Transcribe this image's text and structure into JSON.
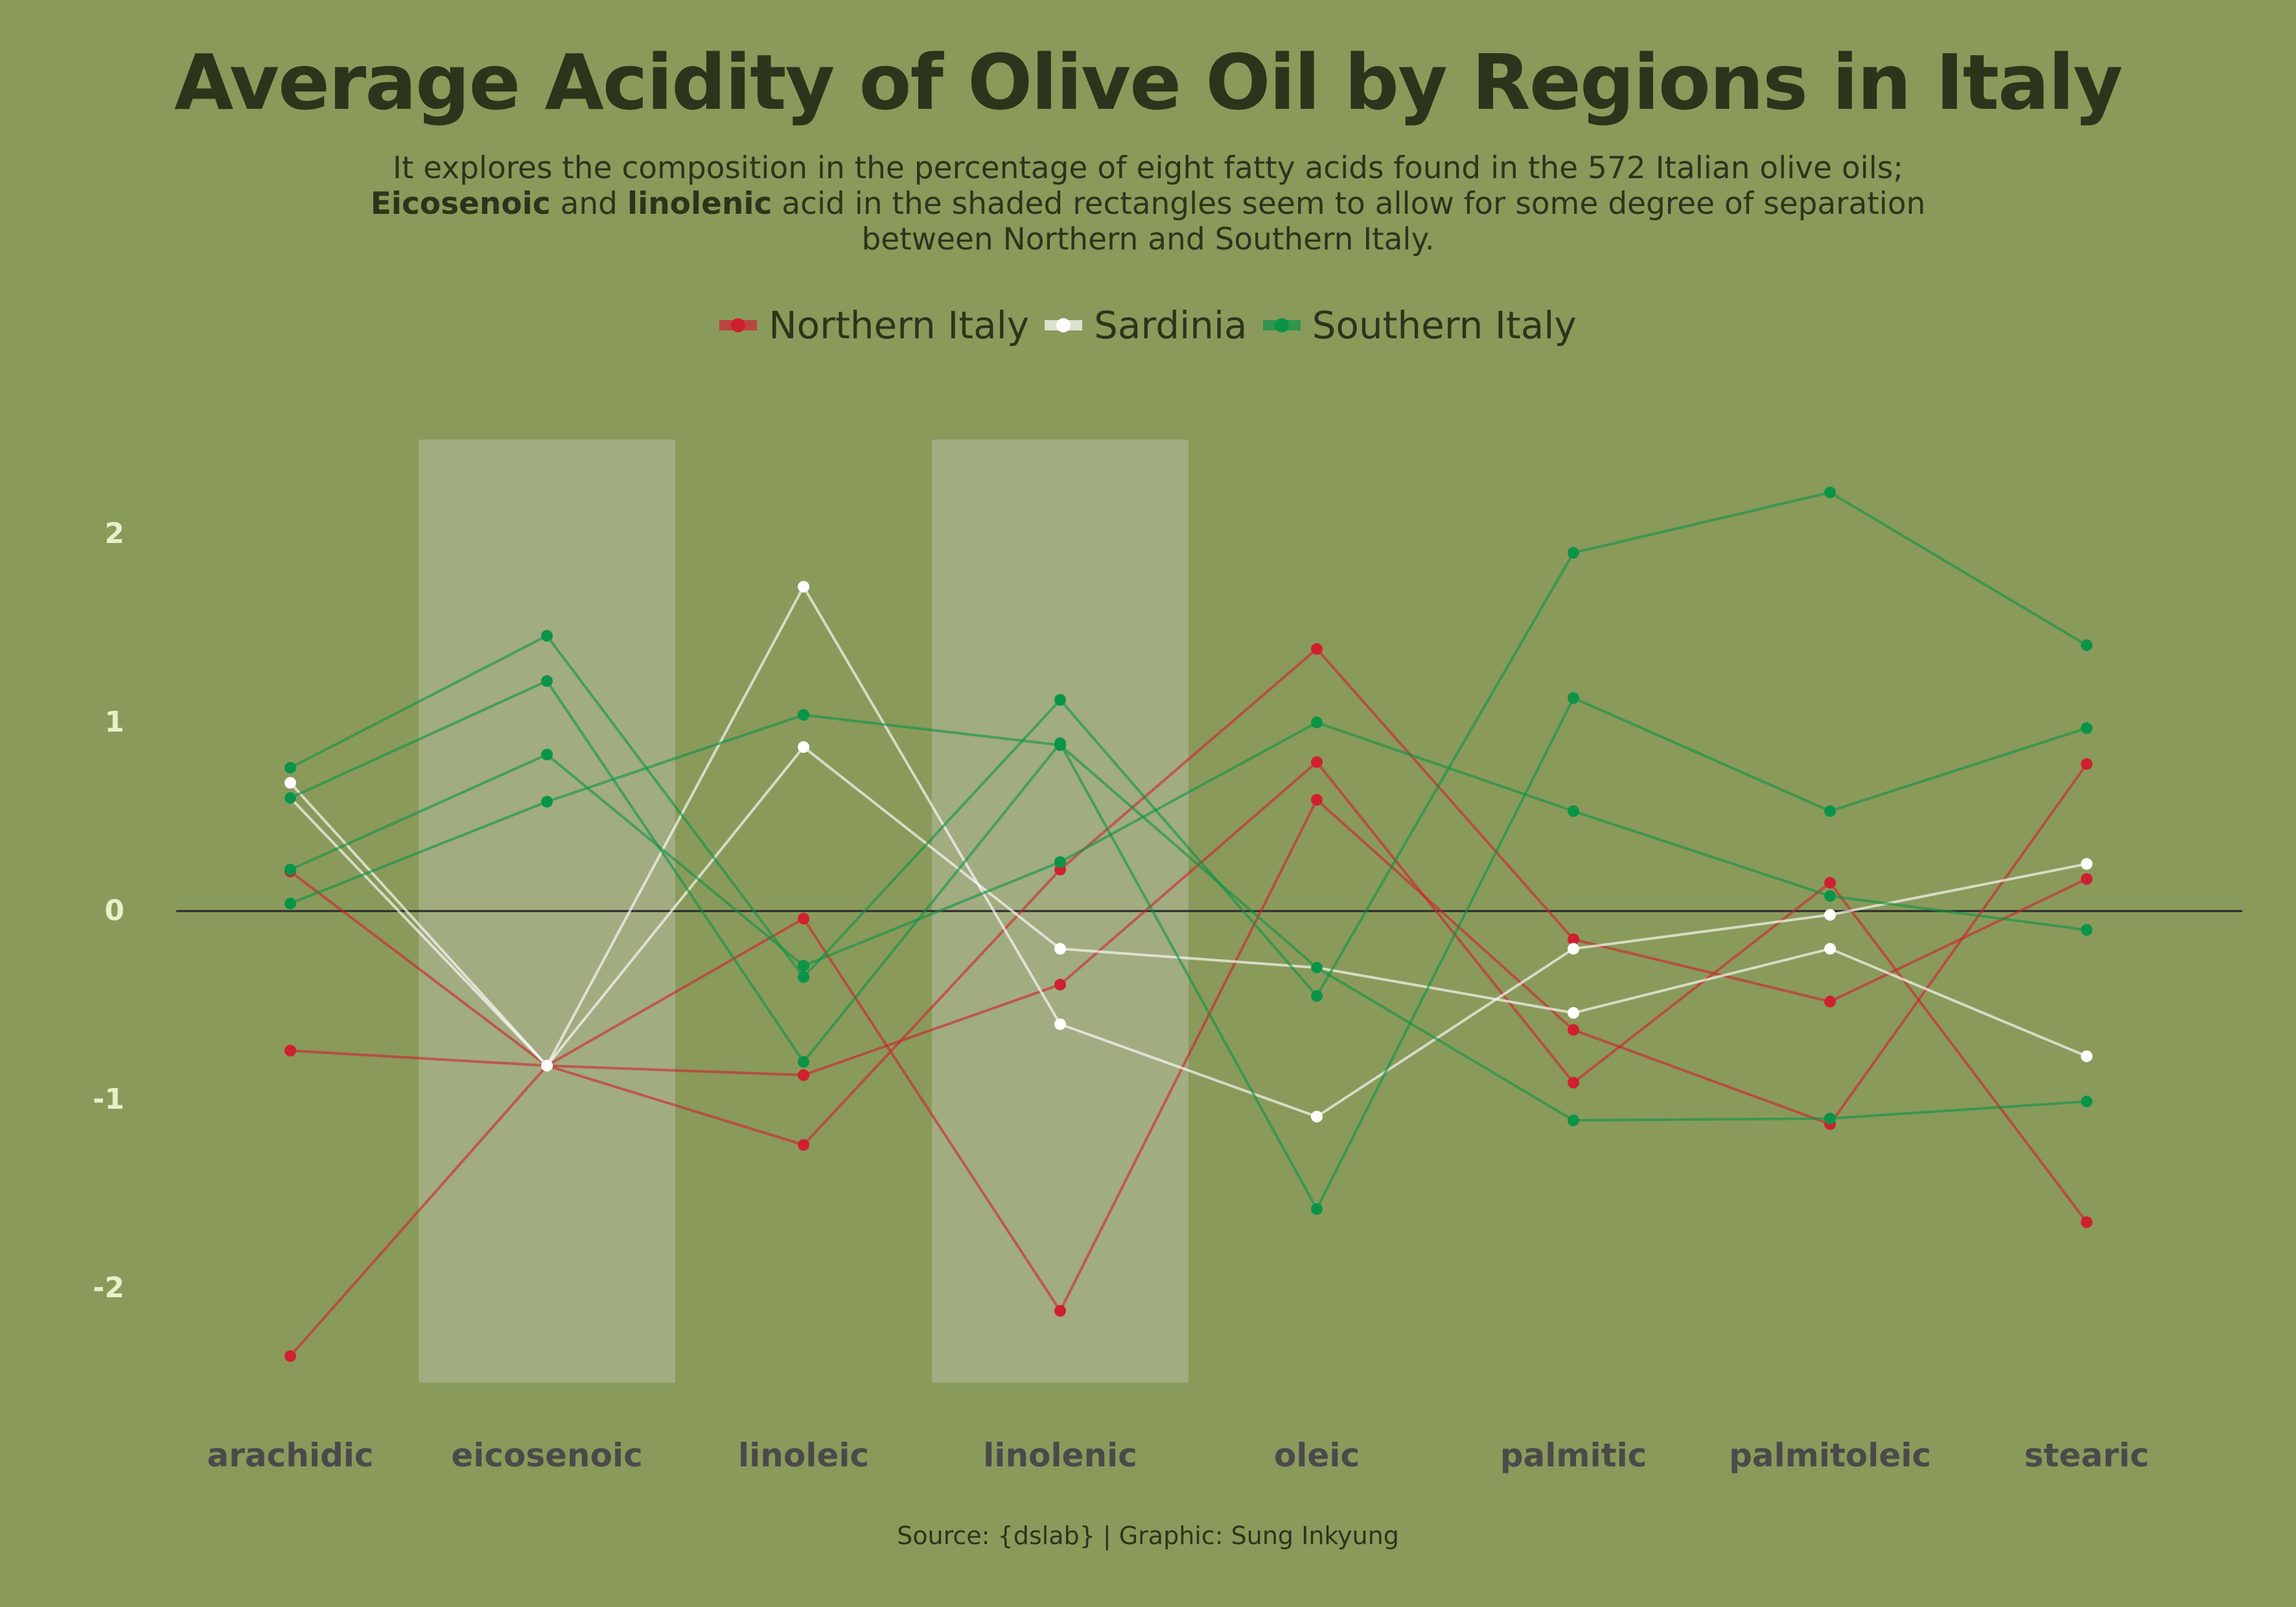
{
  "title": "Average Acidity of Olive Oil by Regions in Italy",
  "subtitle": {
    "line1": "It explores the composition in the percentage of eight fatty acids found in the 572 Italian olive oils;",
    "line2_bold1": "Eicosenoic",
    "line2_mid": " and ",
    "line2_bold2": "linolenic",
    "line2_rest": " acid in the shaded rectangles seem to allow for some degree of separation",
    "line3": "between Northern and Southern Italy."
  },
  "caption": "Source: {dslab} | Graphic: Sung Inkyung",
  "colors": {
    "background": "#8a9a5b",
    "northern": "#d0202f",
    "sardinia": "#ffffff",
    "southern": "#0a9448",
    "title": "#2b351b",
    "tick_y": "#e8f0c8",
    "tick_x": "#4a4a4a",
    "shade": "#d8d8d8"
  },
  "chart_data": {
    "type": "line",
    "x": [
      "arachidic",
      "eicosenoic",
      "linoleic",
      "linolenic",
      "oleic",
      "palmitic",
      "palmitoleic",
      "stearic"
    ],
    "ylim": [
      -2.5,
      2.5
    ],
    "yticks": [
      2,
      1,
      0,
      -1,
      -2
    ],
    "ytick_labels": [
      "2",
      "1",
      "0",
      "-1",
      "-2"
    ],
    "shaded_categories": [
      "eicosenoic",
      "linolenic"
    ],
    "grid": false,
    "legend_position": "top",
    "legend": [
      {
        "group": "northern",
        "label": "Northern Italy"
      },
      {
        "group": "sardinia",
        "label": "Sardinia"
      },
      {
        "group": "southern",
        "label": "Southern Italy"
      }
    ],
    "series": [
      {
        "group": "northern",
        "values": [
          -0.74,
          -0.82,
          -0.87,
          -0.39,
          0.79,
          -0.91,
          0.15,
          -1.65
        ]
      },
      {
        "group": "northern",
        "values": [
          0.21,
          -0.82,
          -1.24,
          0.22,
          1.39,
          -0.15,
          -0.48,
          0.17
        ]
      },
      {
        "group": "northern",
        "values": [
          -2.36,
          -0.82,
          -0.04,
          -2.12,
          0.59,
          -0.63,
          -1.13,
          0.78
        ]
      },
      {
        "group": "sardinia",
        "values": [
          0.68,
          -0.82,
          1.72,
          -0.6,
          -1.09,
          -0.2,
          -0.02,
          0.25
        ]
      },
      {
        "group": "sardinia",
        "values": [
          0.6,
          -0.82,
          0.87,
          -0.2,
          -0.3,
          -0.54,
          -0.2,
          -0.77
        ]
      },
      {
        "group": "southern",
        "values": [
          0.76,
          1.46,
          -0.35,
          1.12,
          -0.45,
          1.9,
          2.22,
          1.41
        ]
      },
      {
        "group": "southern",
        "values": [
          0.6,
          1.22,
          -0.8,
          0.89,
          -1.58,
          1.13,
          0.53,
          0.97
        ]
      },
      {
        "group": "southern",
        "values": [
          0.22,
          0.83,
          -0.29,
          0.26,
          1.0,
          0.53,
          0.08,
          -0.1
        ]
      },
      {
        "group": "southern",
        "values": [
          0.04,
          0.58,
          1.04,
          0.88,
          -0.3,
          -1.11,
          -1.1,
          -1.01
        ]
      }
    ]
  }
}
